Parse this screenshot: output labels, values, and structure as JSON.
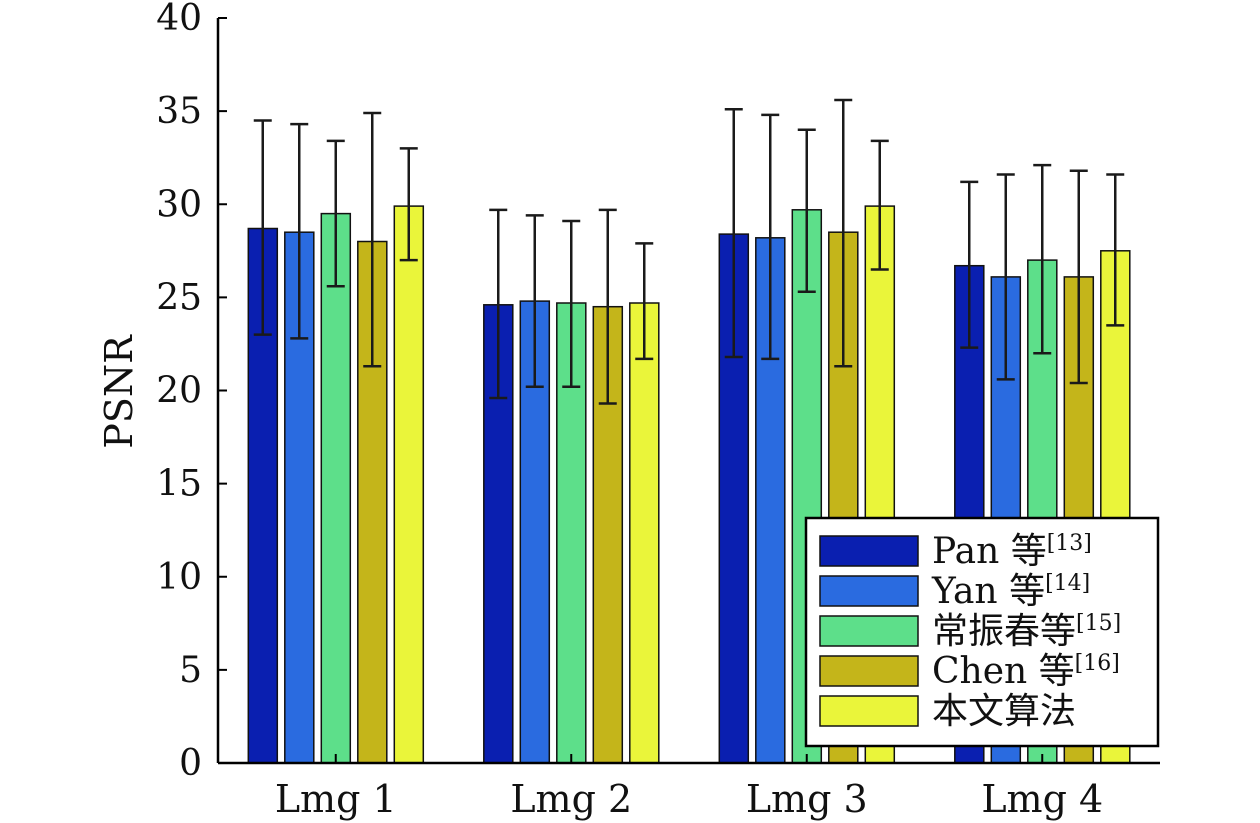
{
  "chart_data": {
    "type": "bar",
    "title": "",
    "xlabel": "",
    "ylabel": "PSNR",
    "ylim": [
      0,
      40
    ],
    "yticks": [
      0,
      5,
      10,
      15,
      20,
      25,
      30,
      35,
      40
    ],
    "categories": [
      "Lmg 1",
      "Lmg 2",
      "Lmg 3",
      "Lmg 4"
    ],
    "error_bars": true,
    "grid": false,
    "legend_position": "bottom-right",
    "series": [
      {
        "name": "Pan 等",
        "ref": "[13]",
        "color": "#0a1fb0",
        "values": [
          28.7,
          24.6,
          28.4,
          26.7
        ],
        "err_low": [
          23.0,
          19.6,
          21.8,
          22.3
        ],
        "err_high": [
          34.5,
          29.7,
          35.1,
          31.2
        ]
      },
      {
        "name": "Yan 等",
        "ref": "[14]",
        "color": "#2a6be0",
        "values": [
          28.5,
          24.8,
          28.2,
          26.1
        ],
        "err_low": [
          22.8,
          20.2,
          21.7,
          20.6
        ],
        "err_high": [
          34.3,
          29.4,
          34.8,
          31.6
        ]
      },
      {
        "name": "常振春等",
        "ref": "[15]",
        "color": "#5ddf8a",
        "values": [
          29.5,
          24.7,
          29.7,
          27.0
        ],
        "err_low": [
          25.6,
          20.2,
          25.3,
          22.0
        ],
        "err_high": [
          33.4,
          29.1,
          34.0,
          32.1
        ]
      },
      {
        "name": "Chen 等",
        "ref": "[16]",
        "color": "#c4b51a",
        "values": [
          28.0,
          24.5,
          28.5,
          26.1
        ],
        "err_low": [
          21.3,
          19.3,
          21.3,
          20.4
        ],
        "err_high": [
          34.9,
          29.7,
          35.6,
          31.8
        ]
      },
      {
        "name": "本文算法",
        "ref": "",
        "color": "#eaf53a",
        "values": [
          29.9,
          24.7,
          29.9,
          27.5
        ],
        "err_low": [
          27.0,
          21.7,
          26.5,
          23.5
        ],
        "err_high": [
          33.0,
          27.9,
          33.4,
          31.6
        ]
      }
    ]
  }
}
